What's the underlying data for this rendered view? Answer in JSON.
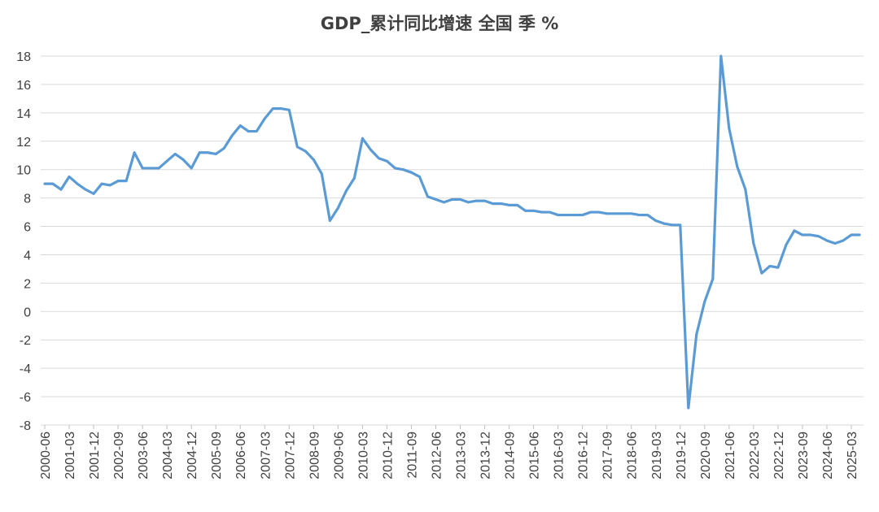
{
  "chart_data": {
    "type": "line",
    "title": "GDP_累计同比增速 全国 季 %",
    "xlabel": "",
    "ylabel": "",
    "ylim": [
      -8,
      18
    ],
    "yticks": [
      18,
      16,
      14,
      12,
      10,
      8,
      6,
      4,
      2,
      0,
      -2,
      -4,
      -6,
      -8
    ],
    "grid": true,
    "legend": "none",
    "color": "#5b9bd5",
    "x_tick_labels": [
      "2000-06",
      "2001-03",
      "2001-12",
      "2002-09",
      "2003-06",
      "2004-03",
      "2004-12",
      "2005-09",
      "2006-06",
      "2007-03",
      "2007-12",
      "2008-09",
      "2009-06",
      "2010-03",
      "2010-12",
      "2011-09",
      "2012-06",
      "2013-03",
      "2013-12",
      "2014-09",
      "2015-06",
      "2016-03",
      "2016-12",
      "2017-09",
      "2018-06",
      "2019-03",
      "2019-12",
      "2020-09",
      "2021-06",
      "2022-03",
      "2022-12",
      "2023-09",
      "2024-06",
      "2025-03"
    ],
    "x": [
      "2000-06",
      "2000-09",
      "2000-12",
      "2001-03",
      "2001-06",
      "2001-09",
      "2001-12",
      "2002-03",
      "2002-06",
      "2002-09",
      "2002-12",
      "2003-03",
      "2003-06",
      "2003-09",
      "2003-12",
      "2004-03",
      "2004-06",
      "2004-09",
      "2004-12",
      "2005-03",
      "2005-06",
      "2005-09",
      "2005-12",
      "2006-03",
      "2006-06",
      "2006-09",
      "2006-12",
      "2007-03",
      "2007-06",
      "2007-09",
      "2007-12",
      "2008-03",
      "2008-06",
      "2008-09",
      "2008-12",
      "2009-03",
      "2009-06",
      "2009-09",
      "2009-12",
      "2010-03",
      "2010-06",
      "2010-09",
      "2010-12",
      "2011-03",
      "2011-06",
      "2011-09",
      "2011-12",
      "2012-03",
      "2012-06",
      "2012-09",
      "2012-12",
      "2013-03",
      "2013-06",
      "2013-09",
      "2013-12",
      "2014-03",
      "2014-06",
      "2014-09",
      "2014-12",
      "2015-03",
      "2015-06",
      "2015-09",
      "2015-12",
      "2016-03",
      "2016-06",
      "2016-09",
      "2016-12",
      "2017-03",
      "2017-06",
      "2017-09",
      "2017-12",
      "2018-03",
      "2018-06",
      "2018-09",
      "2018-12",
      "2019-03",
      "2019-06",
      "2019-09",
      "2019-12",
      "2020-03",
      "2020-06",
      "2020-09",
      "2020-12",
      "2021-03",
      "2021-06",
      "2021-09",
      "2021-12",
      "2022-03",
      "2022-06",
      "2022-09",
      "2022-12",
      "2023-03",
      "2023-06",
      "2023-09",
      "2023-12",
      "2024-03",
      "2024-06",
      "2024-09",
      "2024-12",
      "2025-03",
      "2025-06"
    ],
    "values": [
      9.0,
      9.0,
      8.6,
      9.5,
      9.0,
      8.6,
      8.3,
      9.0,
      8.9,
      9.2,
      9.2,
      11.2,
      10.1,
      10.1,
      10.1,
      10.6,
      11.1,
      10.7,
      10.1,
      11.2,
      11.2,
      11.1,
      11.5,
      12.4,
      13.1,
      12.7,
      12.7,
      13.6,
      14.3,
      14.3,
      14.2,
      11.6,
      11.3,
      10.7,
      9.7,
      6.4,
      7.3,
      8.5,
      9.4,
      12.2,
      11.4,
      10.8,
      10.6,
      10.1,
      10.0,
      9.8,
      9.5,
      8.1,
      7.9,
      7.7,
      7.9,
      7.9,
      7.7,
      7.8,
      7.8,
      7.6,
      7.6,
      7.5,
      7.5,
      7.1,
      7.1,
      7.0,
      7.0,
      6.8,
      6.8,
      6.8,
      6.8,
      7.0,
      7.0,
      6.9,
      6.9,
      6.9,
      6.9,
      6.8,
      6.8,
      6.4,
      6.2,
      6.1,
      6.1,
      -6.8,
      -1.6,
      0.7,
      2.3,
      18.3,
      12.9,
      10.2,
      8.6,
      4.8,
      2.7,
      3.2,
      3.1,
      4.7,
      5.7,
      5.4,
      5.4,
      5.3,
      5.0,
      4.8,
      5.0,
      5.4,
      5.4
    ]
  }
}
